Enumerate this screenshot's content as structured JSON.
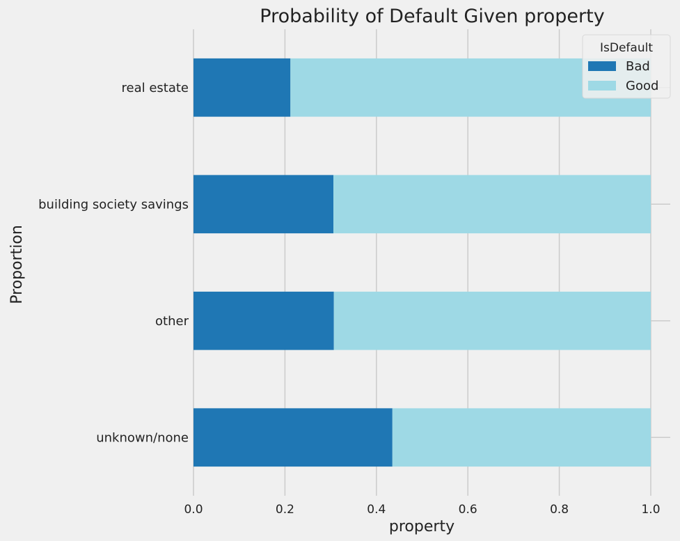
{
  "chart_data": {
    "type": "bar",
    "orientation": "horizontal",
    "stacked": true,
    "title": "Probability of Default Given property",
    "xlabel": "property",
    "ylabel": "Proportion",
    "xlim": [
      0,
      1.0
    ],
    "xticks": [
      0.0,
      0.2,
      0.4,
      0.6,
      0.8,
      1.0
    ],
    "xtick_labels": [
      "0.0",
      "0.2",
      "0.4",
      "0.6",
      "0.8",
      "1.0"
    ],
    "categories": [
      "real estate",
      "building society savings",
      "other",
      "unknown/none"
    ],
    "series": [
      {
        "name": "Bad",
        "color": "#1f77b4",
        "values": [
          0.212,
          0.306,
          0.307,
          0.435
        ]
      },
      {
        "name": "Good",
        "color": "#9ed9e5",
        "values": [
          0.788,
          0.694,
          0.693,
          0.565
        ]
      }
    ],
    "legend": {
      "title": "IsDefault",
      "position": "top-right"
    },
    "grid": true,
    "background": "#f0f0f0",
    "grid_color": "#cbcbcb"
  }
}
